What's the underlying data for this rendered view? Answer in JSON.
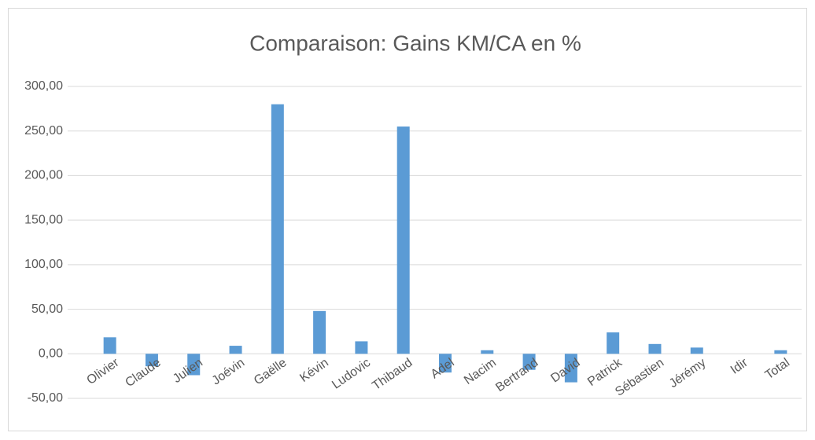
{
  "chart_data": {
    "type": "bar",
    "title": "Comparaison: Gains KM/CA en %",
    "categories": [
      "Olivier",
      "Claude",
      "Julien",
      "Joévin",
      "Gaëlle",
      "Kévin",
      "Ludovic",
      "Thibaud",
      "Adel",
      "Nacim",
      "Bertrand",
      "David",
      "Patrick",
      "Sébastien",
      "Jérémy",
      "Idir",
      "Total"
    ],
    "values": [
      18.5,
      -14,
      -24,
      9,
      280,
      48,
      14,
      255,
      -21,
      4,
      -18,
      -32,
      24,
      11,
      7,
      0,
      4
    ],
    "color": "#5b9bd5",
    "ylim": [
      -50,
      300
    ],
    "yticks": [
      {
        "value": -50,
        "label": "-50,00"
      },
      {
        "value": 0,
        "label": "0,00"
      },
      {
        "value": 50,
        "label": "50,00"
      },
      {
        "value": 100,
        "label": "100,00"
      },
      {
        "value": 150,
        "label": "150,00"
      },
      {
        "value": 200,
        "label": "200,00"
      },
      {
        "value": 250,
        "label": "250,00"
      },
      {
        "value": 300,
        "label": "300,00"
      }
    ],
    "grid": true
  }
}
